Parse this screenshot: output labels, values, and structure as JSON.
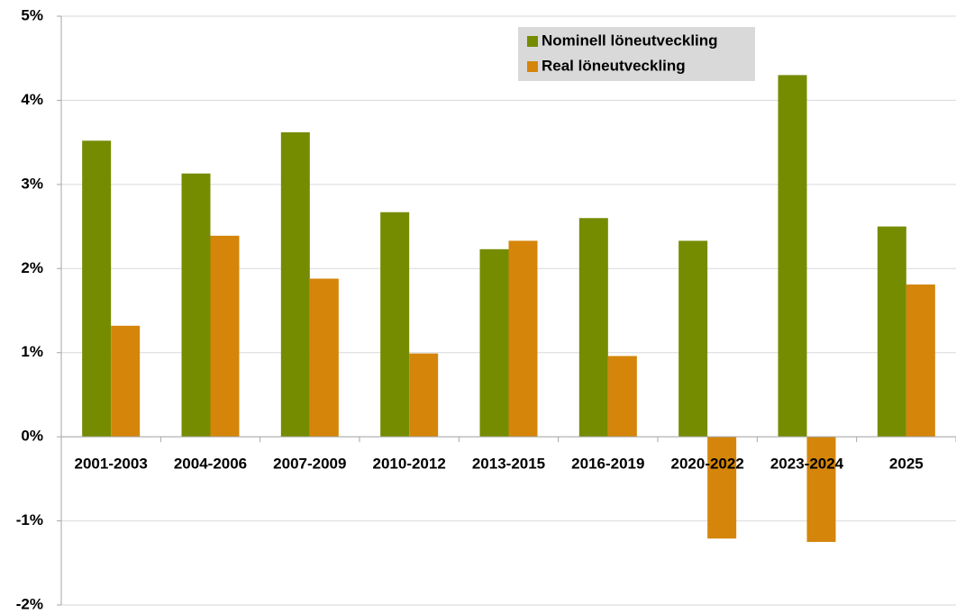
{
  "chart_data": {
    "type": "bar",
    "categories": [
      "2001-2003",
      "2004-2006",
      "2007-2009",
      "2010-2012",
      "2013-2015",
      "2016-2019",
      "2020-2022",
      "2023-2024",
      "2025"
    ],
    "series": [
      {
        "name": "Nominell löneutveckling",
        "color": "#758c00",
        "values": [
          3.52,
          3.13,
          3.62,
          2.67,
          2.23,
          2.6,
          2.33,
          4.3,
          2.5
        ]
      },
      {
        "name": "Real löneutveckling",
        "color": "#d4850a",
        "values": [
          1.32,
          2.39,
          1.88,
          0.99,
          2.33,
          0.96,
          -1.21,
          -1.25,
          1.81
        ]
      }
    ],
    "ylim": [
      -2,
      5
    ],
    "yticks": [
      {
        "value": -2,
        "label": "-2%"
      },
      {
        "value": -1,
        "label": "-1%"
      },
      {
        "value": 0,
        "label": "0%"
      },
      {
        "value": 1,
        "label": "1%"
      },
      {
        "value": 2,
        "label": "2%"
      },
      {
        "value": 3,
        "label": "3%"
      },
      {
        "value": 4,
        "label": "4%"
      },
      {
        "value": 5,
        "label": "5%"
      }
    ],
    "grid": true
  }
}
